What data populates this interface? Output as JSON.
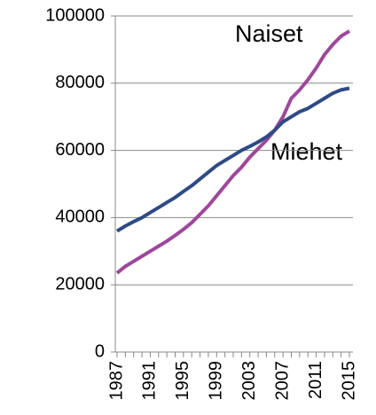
{
  "chart_data": {
    "type": "line",
    "x": [
      1987,
      1988,
      1989,
      1990,
      1991,
      1992,
      1993,
      1994,
      1995,
      1996,
      1997,
      1998,
      1999,
      2000,
      2001,
      2002,
      2003,
      2004,
      2005,
      2006,
      2007,
      2008,
      2009,
      2010,
      2011,
      2012,
      2013,
      2014,
      2015
    ],
    "series": [
      {
        "name": "Naiset",
        "color": "#9e479c",
        "values": [
          23500,
          25500,
          27000,
          28500,
          30000,
          31500,
          33000,
          34700,
          36500,
          38500,
          41000,
          43500,
          46500,
          49500,
          52500,
          55000,
          58000,
          60500,
          63000,
          66000,
          70000,
          75500,
          78000,
          81000,
          84500,
          88500,
          91500,
          94000,
          95500
        ]
      },
      {
        "name": "Miehet",
        "color": "#2e4a87",
        "values": [
          36000,
          37500,
          38800,
          40000,
          41500,
          43000,
          44500,
          46000,
          47800,
          49500,
          51500,
          53500,
          55500,
          57000,
          58500,
          60000,
          61200,
          62500,
          64000,
          66000,
          68500,
          70000,
          71500,
          72500,
          74000,
          75500,
          77000,
          78000,
          78500
        ]
      }
    ],
    "xlim": [
      1987,
      2015
    ],
    "xticks": [
      1987,
      1991,
      1995,
      1999,
      2003,
      2007,
      2011,
      2015
    ],
    "ylim": [
      0,
      100000
    ],
    "yticks": [
      0,
      20000,
      40000,
      60000,
      80000,
      100000
    ],
    "grid": true
  }
}
